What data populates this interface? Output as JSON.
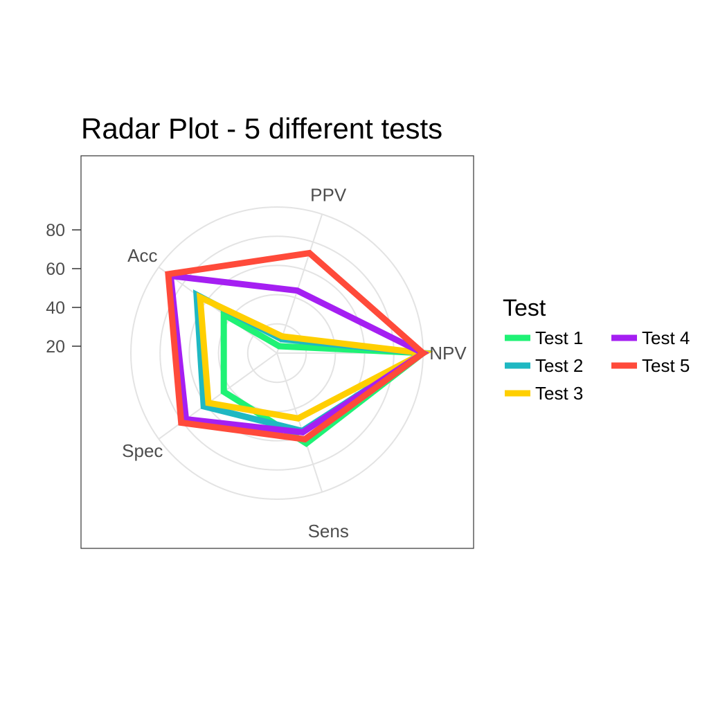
{
  "chart_data": {
    "type": "radar",
    "title": "Radar Plot - 5 different tests",
    "axes": [
      "NPV",
      "PPV",
      "Acc",
      "Spec",
      "Sens"
    ],
    "ticks": [
      "20",
      "40",
      "60",
      "80"
    ],
    "tick_values": [
      20,
      40,
      60,
      80
    ],
    "grid": true,
    "legend": {
      "title": "Test",
      "position": "right"
    },
    "series": [
      {
        "name": "Test 1",
        "color": "#1ff275",
        "values": {
          "NPV": 100,
          "PPV": 5,
          "Acc": 45,
          "Spec": 45,
          "Sens": 65
        }
      },
      {
        "name": "Test 2",
        "color": "#1fb8c2",
        "values": {
          "NPV": 100,
          "PPV": 10,
          "Acc": 68,
          "Spec": 62,
          "Sens": 56
        }
      },
      {
        "name": "Test 3",
        "color": "#ffcf00",
        "values": {
          "NPV": 100,
          "PPV": 12,
          "Acc": 65,
          "Spec": 58,
          "Sens": 47
        }
      },
      {
        "name": "Test 4",
        "color": "#a51ff2",
        "values": {
          "NPV": 100,
          "PPV": 45,
          "Acc": 90,
          "Spec": 77,
          "Sens": 57
        }
      },
      {
        "name": "Test 5",
        "color": "#ff4a3a",
        "values": {
          "NPV": 100,
          "PPV": 72,
          "Acc": 92,
          "Spec": 81,
          "Sens": 62
        }
      }
    ]
  }
}
